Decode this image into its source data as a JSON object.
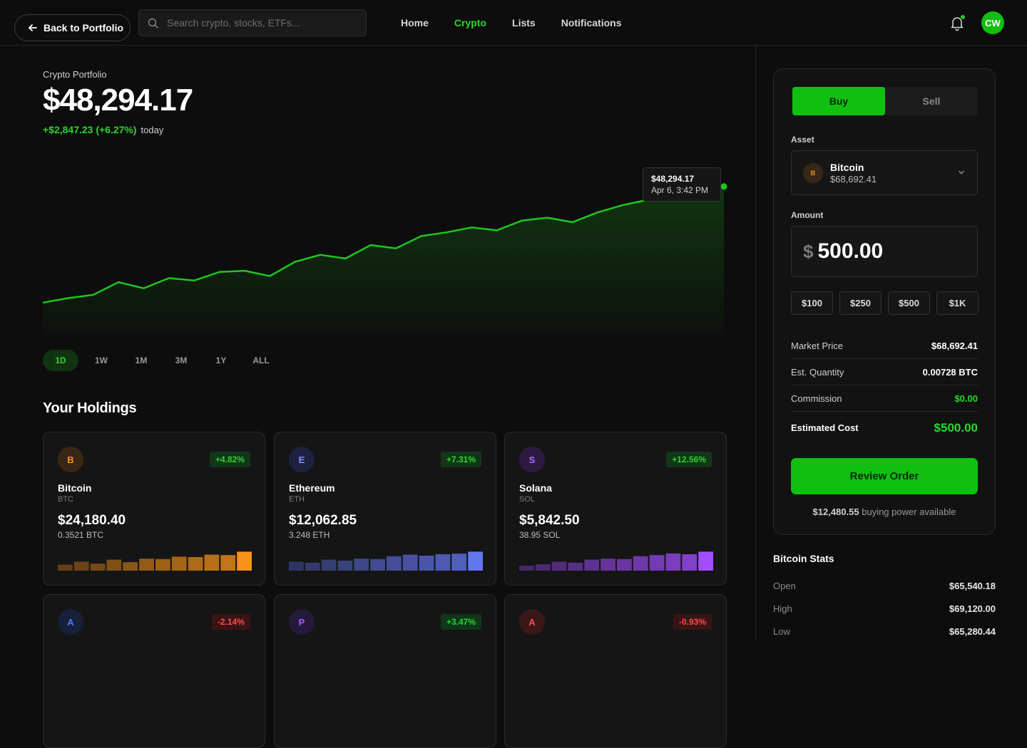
{
  "header": {
    "back_label": "Back to Portfolio",
    "search_placeholder": "Search crypto, stocks, ETFs...",
    "nav": [
      "Home",
      "Crypto",
      "Lists",
      "Notifications"
    ],
    "active_nav": "Crypto",
    "avatar_initials": "CW"
  },
  "portfolio": {
    "label": "Crypto Portfolio",
    "value": "$48,294.17",
    "change": "+$2,847.23 (+6.27%)",
    "period": "today",
    "tooltip_value": "$48,294.17",
    "tooltip_date": "Apr 6, 3:42 PM",
    "ranges": [
      "1D",
      "1W",
      "1M",
      "3M",
      "1Y",
      "ALL"
    ],
    "active_range": "1D"
  },
  "chart_data": {
    "type": "area",
    "title": "",
    "xlabel": "",
    "ylabel": "",
    "x": [
      0,
      1,
      2,
      3,
      4,
      5,
      6,
      7,
      8,
      9,
      10,
      11,
      12,
      13,
      14,
      15,
      16,
      17,
      18,
      19,
      20,
      21,
      22,
      23,
      24,
      25,
      26,
      27
    ],
    "values": [
      45447,
      45560,
      45640,
      45950,
      45800,
      46050,
      45990,
      46200,
      46230,
      46100,
      46450,
      46620,
      46530,
      46860,
      46780,
      47080,
      47170,
      47290,
      47220,
      47460,
      47530,
      47420,
      47660,
      47840,
      47970,
      48050,
      48130,
      48294
    ],
    "ylim": [
      44800,
      48500
    ],
    "color": "#1fc41f"
  },
  "holdings": {
    "title": "Your Holdings",
    "cards": [
      {
        "letter": "B",
        "name": "Bitcoin",
        "symbol": "BTC",
        "value": "$24,180.40",
        "qty": "0.3521 BTC",
        "change": "+4.82%",
        "dir": "up",
        "icon_bg": "#3a2614",
        "icon_fg": "#f7931a",
        "bar_color": "#f7931a",
        "bars": [
          0.3,
          0.45,
          0.35,
          0.55,
          0.42,
          0.6,
          0.58,
          0.7,
          0.68,
          0.8,
          0.78,
          0.95
        ]
      },
      {
        "letter": "E",
        "name": "Ethereum",
        "symbol": "ETH",
        "value": "$12,062.85",
        "qty": "3.248 ETH",
        "change": "+7.31%",
        "dir": "up",
        "icon_bg": "#1e2240",
        "icon_fg": "#7f8fff",
        "bar_color": "#6276f0",
        "bars": [
          0.45,
          0.4,
          0.55,
          0.5,
          0.6,
          0.58,
          0.72,
          0.8,
          0.75,
          0.82,
          0.85,
          0.95
        ]
      },
      {
        "letter": "S",
        "name": "Solana",
        "symbol": "SOL",
        "value": "$5,842.50",
        "qty": "38.95 SOL",
        "change": "+12.56%",
        "dir": "up",
        "icon_bg": "#2a1a40",
        "icon_fg": "#b06bff",
        "bar_color": "#a24dff",
        "bars": [
          0.25,
          0.32,
          0.45,
          0.4,
          0.55,
          0.6,
          0.58,
          0.72,
          0.78,
          0.86,
          0.82,
          0.95
        ]
      },
      {
        "letter": "A",
        "name": "",
        "symbol": "",
        "value": "",
        "qty": "",
        "change": "-2.14%",
        "dir": "down",
        "icon_bg": "#17203a",
        "icon_fg": "#4a7dff",
        "bar_color": "#4a7dff",
        "bars": []
      },
      {
        "letter": "P",
        "name": "",
        "symbol": "",
        "value": "",
        "qty": "",
        "change": "+3.47%",
        "dir": "up",
        "icon_bg": "#261a3c",
        "icon_fg": "#a45cff",
        "bar_color": "#a45cff",
        "bars": []
      },
      {
        "letter": "A",
        "name": "",
        "symbol": "",
        "value": "",
        "qty": "",
        "change": "-0.93%",
        "dir": "down",
        "icon_bg": "#3a1818",
        "icon_fg": "#ff4d4d",
        "bar_color": "#ff4d4d",
        "bars": []
      }
    ]
  },
  "order": {
    "buy_label": "Buy",
    "sell_label": "Sell",
    "asset_label": "Asset",
    "asset_letter": "B",
    "asset_name": "Bitcoin",
    "asset_price": "$68,692.41",
    "amount_label": "Amount",
    "currency": "$",
    "amount": "500.00",
    "quick": [
      "$100",
      "$250",
      "$500",
      "$1K"
    ],
    "market_price_label": "Market Price",
    "market_price": "$68,692.41",
    "est_qty_label": "Est. Quantity",
    "est_qty": "0.00728 BTC",
    "commission_label": "Commission",
    "commission": "$0.00",
    "est_cost_label": "Estimated Cost",
    "est_cost": "$500.00",
    "review_label": "Review Order",
    "buying_power": "$12,480.55",
    "buying_power_suffix": "buying power available"
  },
  "stats": {
    "title": "Bitcoin Stats",
    "items": [
      {
        "k": "Open",
        "v": "$65,540.18"
      },
      {
        "k": "High",
        "v": "$69,120.00"
      },
      {
        "k": "Low",
        "v": "$65,280.44"
      }
    ]
  }
}
